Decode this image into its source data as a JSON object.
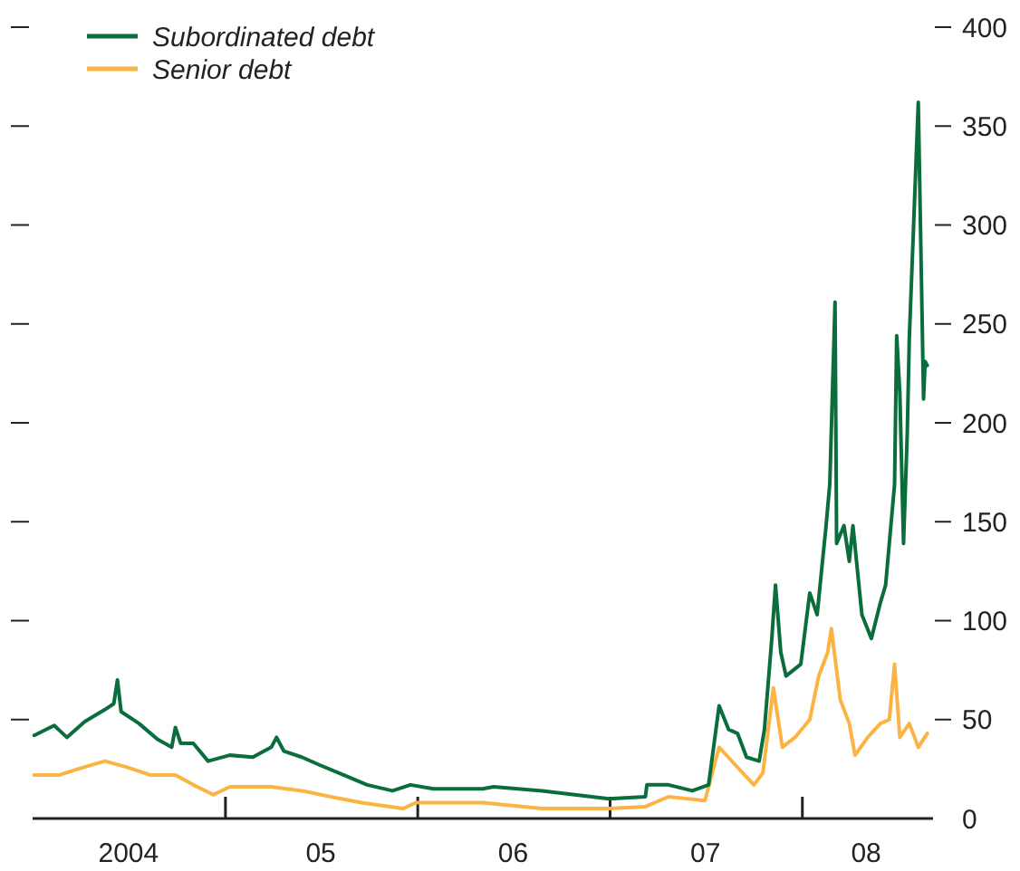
{
  "chart_data": {
    "type": "line",
    "xlim": [
      "2004-01-01",
      "2008-09-05"
    ],
    "ylim": [
      0,
      400
    ],
    "yticks": [
      0,
      50,
      100,
      150,
      200,
      250,
      300,
      350,
      400
    ],
    "xticks": [
      {
        "value": "2005-01-01",
        "label": null
      },
      {
        "value": "2006-01-01",
        "label": null
      },
      {
        "value": "2007-01-01",
        "label": null
      },
      {
        "value": "2008-01-01",
        "label": null
      },
      {
        "value": "2004-07-01",
        "label": "2004"
      },
      {
        "value": "2005-07-01",
        "label": "05"
      },
      {
        "value": "2006-07-01",
        "label": "06"
      },
      {
        "value": "2007-07-01",
        "label": "07"
      },
      {
        "value": "2008-05-01",
        "label": "08"
      }
    ],
    "legend": "top left",
    "line_style": "solid",
    "series": [
      {
        "name": "Subordinated debt",
        "color": "#0a6e3c",
        "x": [
          "2004-01-04",
          "2004-02-11",
          "2004-03-06",
          "2004-04-09",
          "2004-05-17",
          "2004-06-03",
          "2004-06-10",
          "2004-06-17",
          "2004-07-21",
          "2004-08-25",
          "2004-09-21",
          "2004-09-28",
          "2004-10-08",
          "2004-11-01",
          "2004-11-29",
          "2005-01-09",
          "2005-02-22",
          "2005-03-29",
          "2005-04-08",
          "2005-04-22",
          "2005-05-26",
          "2005-06-29",
          "2005-08-13",
          "2005-09-27",
          "2005-11-14",
          "2005-12-18",
          "2006-01-31",
          "2006-05-04",
          "2006-05-25",
          "2006-08-25",
          "2006-12-30",
          "2007-03-09",
          "2007-03-12",
          "2007-04-22",
          "2007-06-06",
          "2007-07-07",
          "2007-07-27",
          "2007-08-14",
          "2007-08-31",
          "2007-09-17",
          "2007-10-11",
          "2007-10-21",
          "2007-11-04",
          "2007-11-11",
          "2007-11-21",
          "2007-12-01",
          "2007-12-29",
          "2008-01-15",
          "2008-01-29",
          "2008-02-15",
          "2008-02-22",
          "2008-03-03",
          "2008-03-06",
          "2008-03-20",
          "2008-03-30",
          "2008-04-06",
          "2008-04-23",
          "2008-05-11",
          "2008-05-28",
          "2008-06-07",
          "2008-06-24",
          "2008-06-28",
          "2008-07-04",
          "2008-07-11",
          "2008-07-18",
          "2008-07-22",
          "2008-08-08",
          "2008-08-18",
          "2008-08-21",
          "2008-08-25"
        ],
        "values": [
          42,
          47,
          41,
          49,
          55,
          58,
          70,
          54,
          48,
          40,
          36,
          46,
          38,
          38,
          29,
          32,
          31,
          36,
          41,
          34,
          31,
          27,
          22,
          17,
          14,
          17,
          15,
          15,
          16,
          14,
          10,
          11,
          17,
          17,
          14,
          17,
          57,
          45,
          43,
          31,
          29,
          45,
          91,
          118,
          84,
          72,
          78,
          114,
          103,
          148,
          169,
          261,
          139,
          148,
          130,
          148,
          103,
          91,
          109,
          118,
          169,
          244,
          215,
          139,
          194,
          243,
          362,
          212,
          231,
          229
        ]
      },
      {
        "name": "Senior debt",
        "color": "#fbb444",
        "x": [
          "2004-01-04",
          "2004-02-21",
          "2004-03-27",
          "2004-05-17",
          "2004-06-27",
          "2004-08-11",
          "2004-09-28",
          "2004-11-01",
          "2004-12-09",
          "2005-01-09",
          "2005-03-29",
          "2005-05-26",
          "2005-07-20",
          "2005-09-16",
          "2005-12-04",
          "2005-12-28",
          "2006-05-04",
          "2006-08-25",
          "2006-12-30",
          "2007-03-09",
          "2007-04-22",
          "2007-06-30",
          "2007-07-27",
          "2007-08-27",
          "2007-10-01",
          "2007-10-18",
          "2007-11-07",
          "2007-11-24",
          "2007-12-18",
          "2008-01-15",
          "2008-02-01",
          "2008-02-18",
          "2008-02-25",
          "2008-03-13",
          "2008-03-30",
          "2008-04-10",
          "2008-05-04",
          "2008-05-28",
          "2008-06-14",
          "2008-06-24",
          "2008-07-04",
          "2008-07-22",
          "2008-08-08",
          "2008-08-25"
        ],
        "values": [
          22,
          22,
          25,
          29,
          26,
          22,
          22,
          17,
          12,
          16,
          16,
          14,
          11,
          8,
          5,
          8,
          8,
          5,
          5,
          6,
          11,
          9,
          36,
          27,
          17,
          23,
          66,
          36,
          41,
          50,
          72,
          84,
          96,
          60,
          48,
          32,
          41,
          48,
          50,
          78,
          41,
          48,
          36,
          43
        ]
      }
    ]
  }
}
